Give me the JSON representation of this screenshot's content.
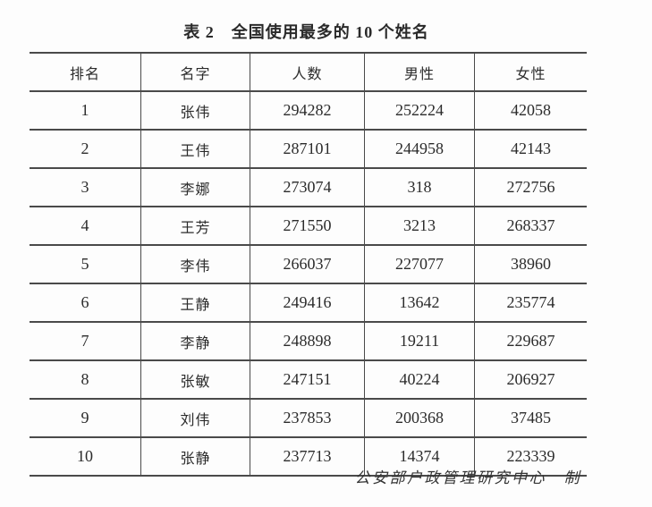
{
  "colors": {
    "background": "#fdfdfd",
    "rule_line": "#4a4a4a",
    "text": "#2b2b2b"
  },
  "chart_data": {
    "type": "table",
    "title": "表 2　全国使用最多的 10 个姓名",
    "columns": [
      "排名",
      "名字",
      "人数",
      "男性",
      "女性"
    ],
    "rows": [
      [
        1,
        "张伟",
        294282,
        252224,
        42058
      ],
      [
        2,
        "王伟",
        287101,
        244958,
        42143
      ],
      [
        3,
        "李娜",
        273074,
        318,
        272756
      ],
      [
        4,
        "王芳",
        271550,
        3213,
        268337
      ],
      [
        5,
        "李伟",
        266037,
        227077,
        38960
      ],
      [
        6,
        "王静",
        249416,
        13642,
        235774
      ],
      [
        7,
        "李静",
        248898,
        19211,
        229687
      ],
      [
        8,
        "张敏",
        247151,
        40224,
        206927
      ],
      [
        9,
        "刘伟",
        237853,
        200368,
        37485
      ],
      [
        10,
        "张静",
        237713,
        14374,
        223339
      ]
    ],
    "source_note": "公安部户政管理研究中心　制",
    "layout": {
      "grid": "horizontal rules on every row; vertical rules between columns only (no outer left/right border)",
      "column_alignment": "center"
    }
  }
}
